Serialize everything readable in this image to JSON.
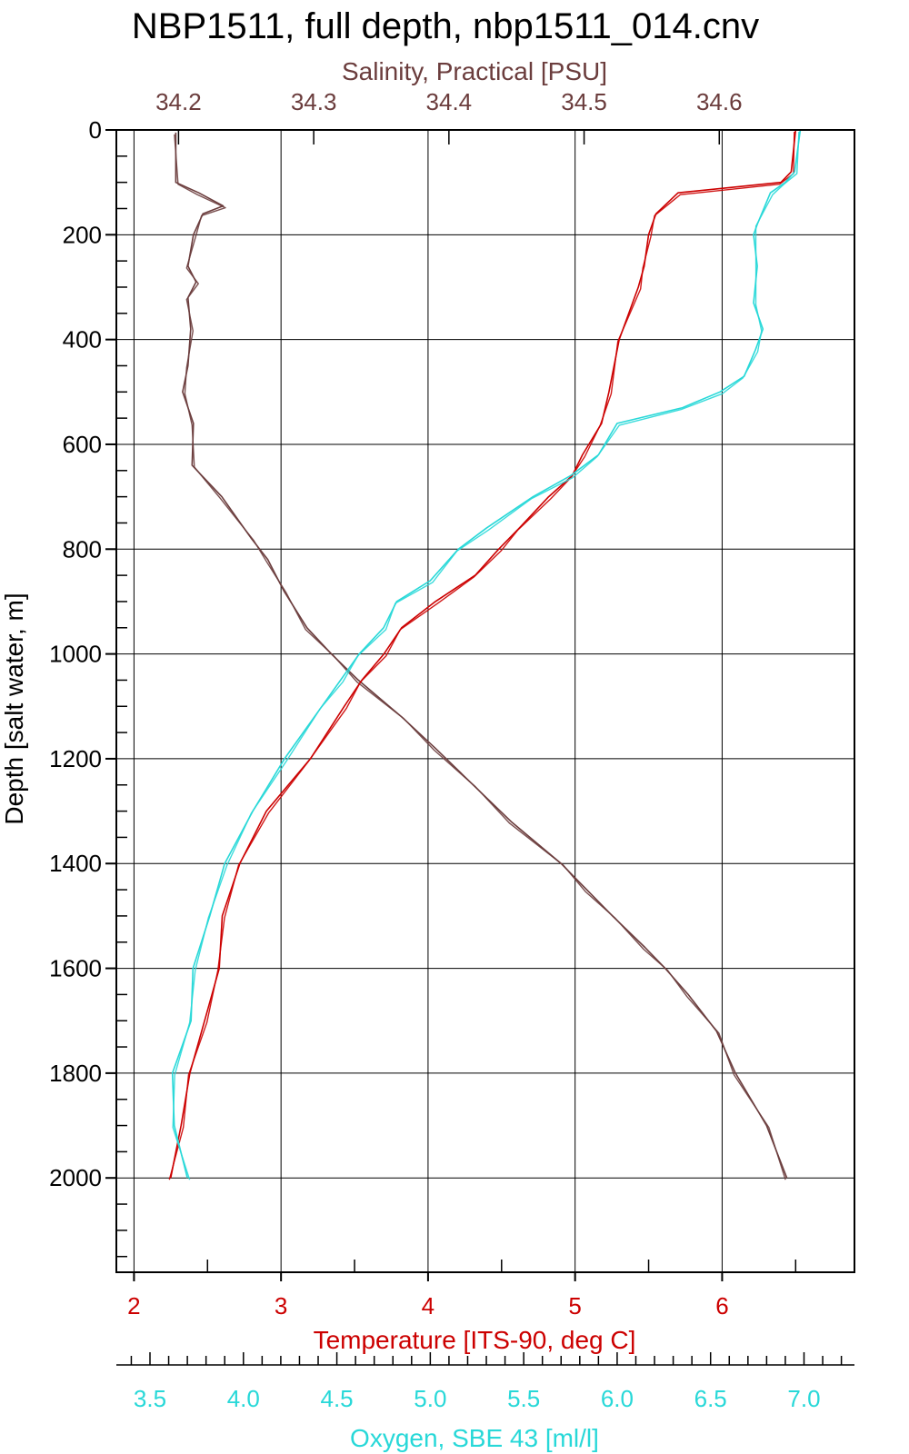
{
  "chart_data": {
    "type": "line",
    "title": "NBP1511, full depth, nbp1511_014.cnv",
    "colors": {
      "salinity": "#6b3d3d",
      "temperature": "#cc0000",
      "oxygen": "#28d8d8",
      "grid": "#000000"
    },
    "axes": {
      "depth": {
        "label": "Depth [salt water, m]",
        "range": [
          0,
          2180
        ],
        "ticks": [
          0,
          200,
          400,
          600,
          800,
          1000,
          1200,
          1400,
          1600,
          1800,
          2000
        ],
        "tick_labels": [
          "0",
          "200",
          "400",
          "600",
          "800",
          "1000",
          "1200",
          "1400",
          "1600",
          "1800",
          "2000"
        ]
      },
      "salinity": {
        "label": "Salinity, Practical [PSU]",
        "range": [
          34.154,
          34.7
        ],
        "ticks": [
          34.2,
          34.3,
          34.4,
          34.5,
          34.6
        ],
        "tick_labels": [
          "34.2",
          "34.3",
          "34.4",
          "34.5",
          "34.6"
        ]
      },
      "temperature": {
        "label": "Temperature [ITS-90, deg C]",
        "range": [
          1.88,
          6.9
        ],
        "ticks": [
          2,
          3,
          4,
          5,
          6
        ],
        "tick_labels": [
          "2",
          "3",
          "4",
          "5",
          "6"
        ]
      },
      "oxygen": {
        "label": "Oxygen, SBE 43 [ml/l]",
        "range": [
          3.32,
          7.27
        ],
        "ticks": [
          3.5,
          4.0,
          4.5,
          5.0,
          5.5,
          6.0,
          6.5,
          7.0
        ],
        "tick_labels": [
          "3.5",
          "4.0",
          "4.5",
          "5.0",
          "5.5",
          "6.0",
          "6.5",
          "7.0"
        ]
      }
    },
    "grid": true,
    "series": [
      {
        "key": "salinity",
        "depth": [
          5,
          100,
          120,
          145,
          160,
          200,
          260,
          290,
          320,
          380,
          450,
          500,
          560,
          640,
          700,
          780,
          820,
          880,
          950,
          1000,
          1050,
          1120,
          1180,
          1250,
          1320,
          1400,
          1450,
          1500,
          1560,
          1600,
          1650,
          1720,
          1800,
          1900,
          2000
        ],
        "values": [
          34.198,
          34.198,
          34.215,
          34.233,
          34.218,
          34.211,
          34.207,
          34.213,
          34.207,
          34.209,
          34.207,
          34.203,
          34.211,
          34.21,
          34.232,
          34.254,
          34.266,
          34.278,
          34.295,
          34.313,
          34.333,
          34.365,
          34.39,
          34.418,
          34.446,
          34.483,
          34.502,
          34.521,
          34.545,
          34.56,
          34.577,
          34.598,
          34.612,
          34.635,
          34.65
        ]
      },
      {
        "key": "temperature",
        "depth": [
          0,
          80,
          100,
          120,
          160,
          200,
          260,
          300,
          400,
          500,
          560,
          620,
          660,
          700,
          760,
          800,
          850,
          900,
          950,
          1000,
          1050,
          1100,
          1200,
          1300,
          1400,
          1500,
          1600,
          1700,
          1800,
          1900,
          2000
        ],
        "values": [
          6.5,
          6.47,
          6.4,
          5.7,
          5.55,
          5.5,
          5.47,
          5.43,
          5.3,
          5.23,
          5.18,
          5.05,
          4.98,
          4.82,
          4.62,
          4.48,
          4.32,
          4.05,
          3.82,
          3.7,
          3.55,
          3.43,
          3.2,
          2.9,
          2.72,
          2.6,
          2.58,
          2.48,
          2.38,
          2.32,
          2.25
        ]
      },
      {
        "key": "oxygen",
        "depth": [
          0,
          80,
          100,
          120,
          180,
          200,
          260,
          330,
          380,
          420,
          470,
          500,
          530,
          560,
          620,
          660,
          700,
          760,
          800,
          860,
          900,
          950,
          1000,
          1050,
          1100,
          1200,
          1300,
          1400,
          1500,
          1600,
          1700,
          1800,
          1900,
          2000
        ],
        "values": [
          6.98,
          6.95,
          6.9,
          6.82,
          6.75,
          6.73,
          6.75,
          6.73,
          6.78,
          6.74,
          6.68,
          6.55,
          6.35,
          6.0,
          5.9,
          5.75,
          5.55,
          5.3,
          5.15,
          5.0,
          4.82,
          4.75,
          4.62,
          4.52,
          4.42,
          4.22,
          4.05,
          3.9,
          3.82,
          3.73,
          3.72,
          3.62,
          3.63,
          3.7
        ]
      }
    ]
  }
}
